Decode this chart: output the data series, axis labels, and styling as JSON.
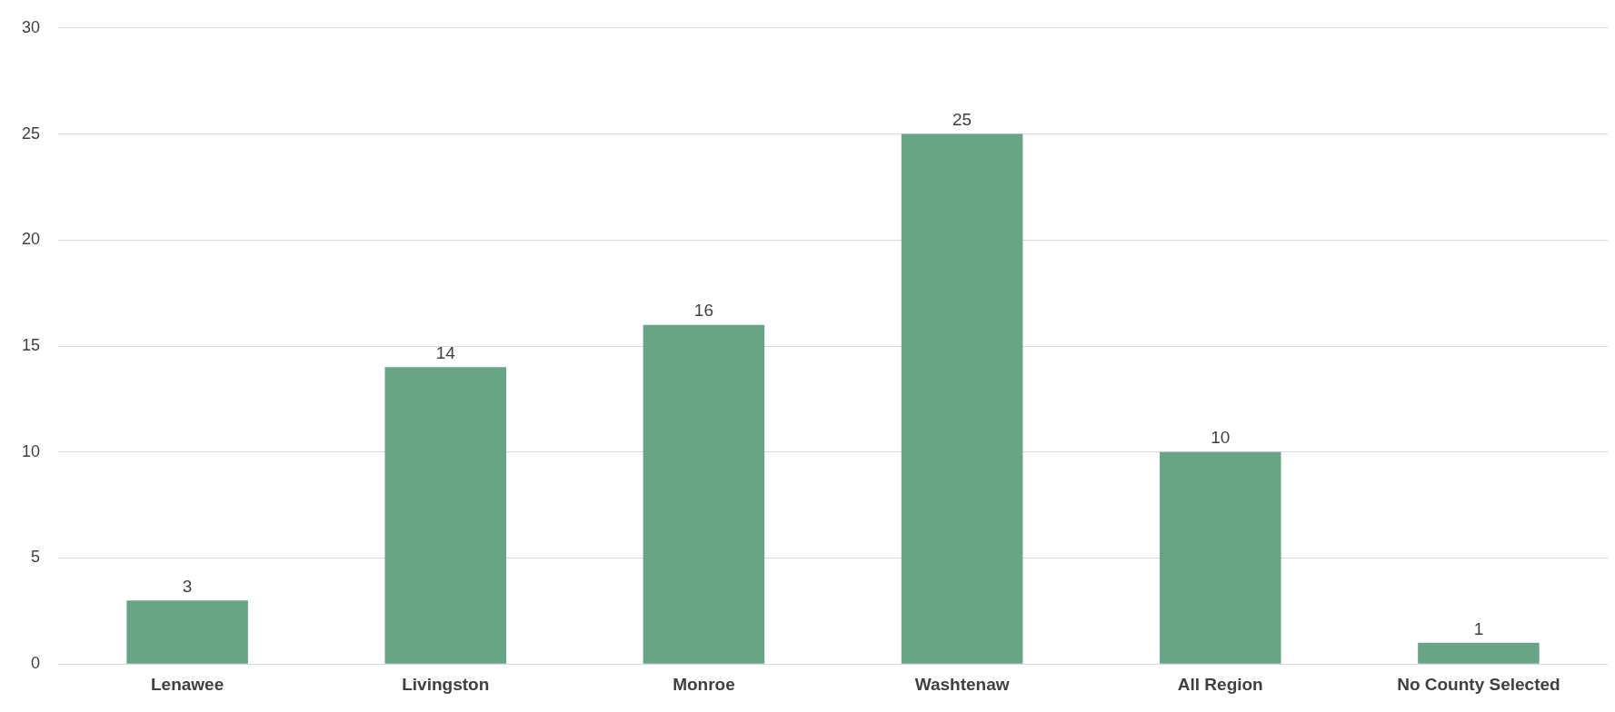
{
  "chart_data": {
    "type": "bar",
    "categories": [
      "Lenawee",
      "Livingston",
      "Monroe",
      "Washtenaw",
      "All Region",
      "No County Selected"
    ],
    "values": [
      3,
      14,
      16,
      25,
      10,
      1
    ],
    "color": "#6aa487",
    "ylim": [
      0,
      30
    ],
    "yticks": [
      0,
      5,
      10,
      15,
      20,
      25,
      30
    ],
    "grid": "y",
    "data_labels": true
  }
}
